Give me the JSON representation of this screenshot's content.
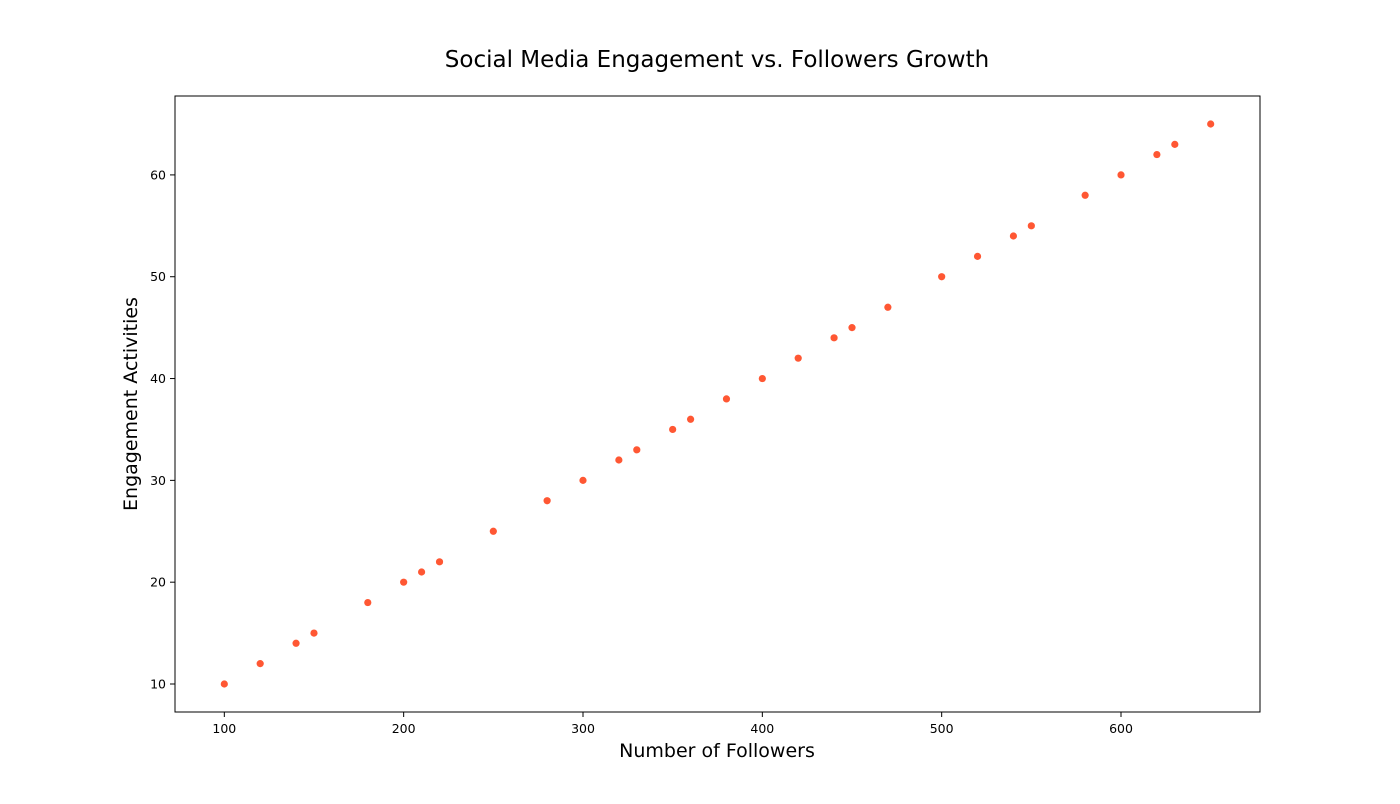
{
  "chart_data": {
    "type": "scatter",
    "title": "Social Media Engagement vs. Followers Growth",
    "xlabel": "Number of Followers",
    "ylabel": "Engagement Activities",
    "xlim": [
      72.5,
      677.5
    ],
    "ylim": [
      7.25,
      67.75
    ],
    "xticks": [
      100,
      200,
      300,
      400,
      500,
      600
    ],
    "yticks": [
      10,
      20,
      30,
      40,
      50,
      60
    ],
    "grid": false,
    "marker_color": "#ff5733",
    "points": [
      {
        "x": 100,
        "y": 10
      },
      {
        "x": 120,
        "y": 12
      },
      {
        "x": 140,
        "y": 14
      },
      {
        "x": 150,
        "y": 15
      },
      {
        "x": 180,
        "y": 18
      },
      {
        "x": 200,
        "y": 20
      },
      {
        "x": 210,
        "y": 21
      },
      {
        "x": 220,
        "y": 22
      },
      {
        "x": 250,
        "y": 25
      },
      {
        "x": 280,
        "y": 28
      },
      {
        "x": 300,
        "y": 30
      },
      {
        "x": 320,
        "y": 32
      },
      {
        "x": 330,
        "y": 33
      },
      {
        "x": 350,
        "y": 35
      },
      {
        "x": 360,
        "y": 36
      },
      {
        "x": 380,
        "y": 38
      },
      {
        "x": 400,
        "y": 40
      },
      {
        "x": 420,
        "y": 42
      },
      {
        "x": 440,
        "y": 44
      },
      {
        "x": 450,
        "y": 45
      },
      {
        "x": 470,
        "y": 47
      },
      {
        "x": 500,
        "y": 50
      },
      {
        "x": 520,
        "y": 52
      },
      {
        "x": 540,
        "y": 54
      },
      {
        "x": 550,
        "y": 55
      },
      {
        "x": 580,
        "y": 58
      },
      {
        "x": 600,
        "y": 60
      },
      {
        "x": 620,
        "y": 62
      },
      {
        "x": 630,
        "y": 63
      },
      {
        "x": 650,
        "y": 65
      }
    ]
  }
}
